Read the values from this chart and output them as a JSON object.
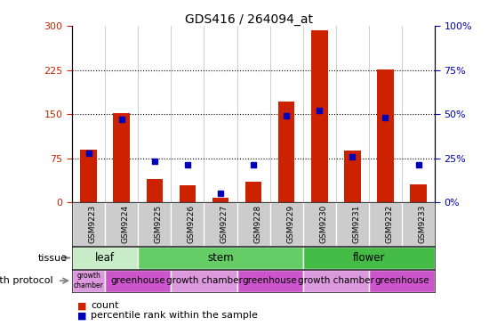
{
  "title": "GDS416 / 264094_at",
  "samples": [
    "GSM9223",
    "GSM9224",
    "GSM9225",
    "GSM9226",
    "GSM9227",
    "GSM9228",
    "GSM9229",
    "GSM9230",
    "GSM9231",
    "GSM9232",
    "GSM9233"
  ],
  "counts": [
    90,
    152,
    40,
    28,
    8,
    35,
    172,
    293,
    88,
    226,
    30
  ],
  "percentiles": [
    28,
    47,
    23,
    21,
    5,
    21,
    49,
    52,
    26,
    48,
    21
  ],
  "ylim_left": [
    0,
    300
  ],
  "ylim_right": [
    0,
    100
  ],
  "yticks_left": [
    0,
    75,
    150,
    225,
    300
  ],
  "yticks_right": [
    0,
    25,
    50,
    75,
    100
  ],
  "bar_color": "#cc2200",
  "dot_color": "#0000bb",
  "tissue_groups": [
    {
      "label": "leaf",
      "start": 0,
      "end": 2,
      "color": "#c8ecc8"
    },
    {
      "label": "stem",
      "start": 2,
      "end": 7,
      "color": "#66cc66"
    },
    {
      "label": "flower",
      "start": 7,
      "end": 11,
      "color": "#44bb44"
    }
  ],
  "protocol_groups": [
    {
      "label": "growth\nchamber",
      "start": 0,
      "end": 1,
      "color": "#dd99dd"
    },
    {
      "label": "greenhouse",
      "start": 1,
      "end": 3,
      "color": "#cc55cc"
    },
    {
      "label": "growth chamber",
      "start": 3,
      "end": 5,
      "color": "#dd99dd"
    },
    {
      "label": "greenhouse",
      "start": 5,
      "end": 7,
      "color": "#cc55cc"
    },
    {
      "label": "growth chamber",
      "start": 7,
      "end": 9,
      "color": "#dd99dd"
    },
    {
      "label": "greenhouse",
      "start": 9,
      "end": 11,
      "color": "#cc55cc"
    }
  ],
  "tissue_label": "tissue",
  "protocol_label": "growth protocol",
  "legend_count_label": "count",
  "legend_percentile_label": "percentile rank within the sample",
  "tick_label_color_left": "#cc2200",
  "tick_label_color_right": "#0000bb",
  "xticklabel_bg": "#cccccc"
}
